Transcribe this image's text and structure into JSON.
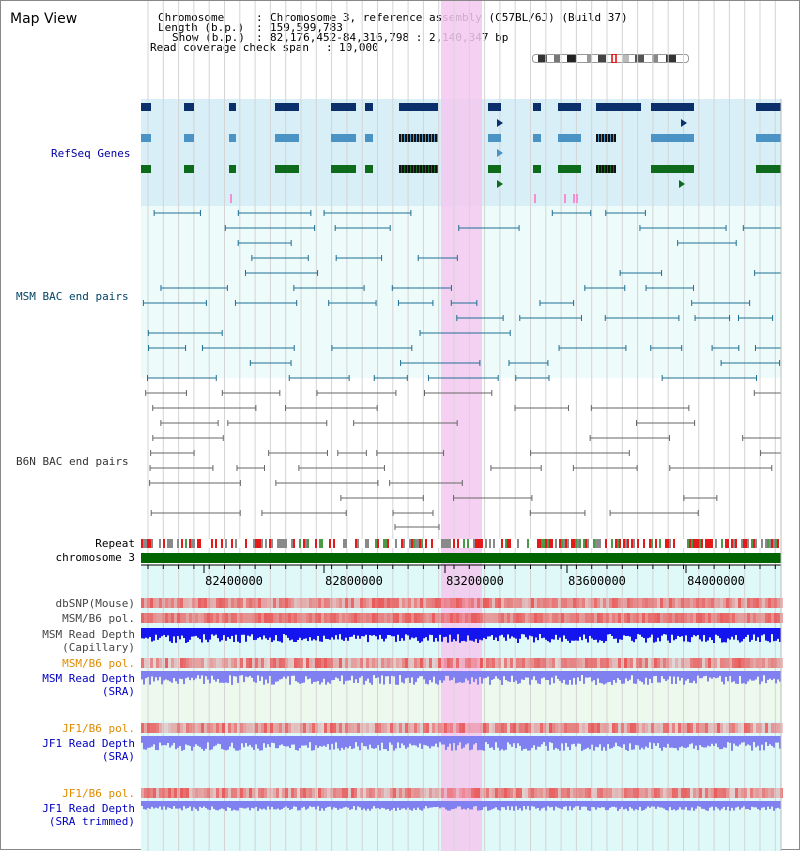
{
  "header": {
    "title": "Map View",
    "chromosome_key": "Chromosome",
    "chromosome_val": "Chromosome 3, reference assembly (C57BL/6J) (Build 37)",
    "length_key": "Length (b.p.)",
    "length_val": "159,599,783",
    "show_key": "Show (b.p.)",
    "show_val": "82,176,452-84,316,798 : 2,140,347 bp",
    "coverage_key": "Read coverage check span",
    "coverage_val": "10,000"
  },
  "tracks": {
    "refseq": "RefSeq Genes",
    "msm_bac": "MSM BAC end pairs",
    "b6n_bac": "B6N BAC end pairs",
    "repeat": "Repeat",
    "chromosome": "chromosome 3",
    "dbsnp": "dbSNP(Mouse)",
    "msm_b6_pol_1": "MSM/B6 pol.",
    "msm_read_depth_cap_1": "MSM Read Depth",
    "msm_read_depth_cap_2": "(Capillary)",
    "msm_b6_pol_2": "MSM/B6 pol.",
    "msm_read_depth_sra_1": "MSM Read Depth",
    "msm_read_depth_sra_2": "(SRA)",
    "jf1_b6_pol_1": "JF1/B6 pol.",
    "jf1_read_depth_1": "JF1 Read Depth",
    "jf1_read_depth_2": "(SRA)",
    "jf1_b6_pol_2": "JF1/B6 pol.",
    "jf1_trim_1": "JF1 Read Depth",
    "jf1_trim_2": "(SRA trimmed)"
  },
  "axis": {
    "ticks": [
      "82400000",
      "82800000",
      "83200000",
      "83600000",
      "84000000"
    ]
  },
  "colors": {
    "refseq_dark": "#0b2f6b",
    "refseq_light": "#4a93c4",
    "refseq_green": "#0e6b1c",
    "msm_pair": "#1f6f93",
    "b6n_pair": "#666666",
    "highlight": "#f4c8f0",
    "chrom": "#006400",
    "snp": "#e85b5b",
    "depth_blue": "#1414ee",
    "depth_light": "#8080f0"
  }
}
